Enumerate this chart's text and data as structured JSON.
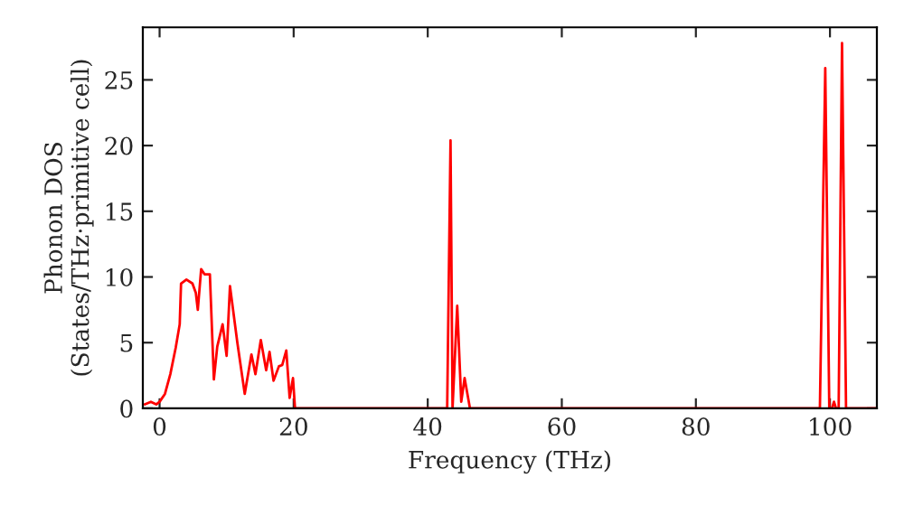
{
  "chart_data": {
    "type": "line",
    "xlabel": "Frequency (THz)",
    "ylabel": "Phonon DOS\n(States/THz·primitive cell)",
    "xlim": [
      -2.5,
      107
    ],
    "ylim": [
      0,
      29
    ],
    "xticks": [
      0,
      20,
      40,
      60,
      80,
      100
    ],
    "yticks": [
      0,
      5,
      10,
      15,
      20,
      25
    ],
    "marker": "none",
    "line_style": "solid",
    "x": [
      -2.2,
      -1.3,
      -0.5,
      0,
      0.8,
      1.6,
      2.4,
      3.0,
      3.2,
      4.0,
      4.9,
      5.4,
      5.7,
      6.2,
      6.7,
      7.5,
      8.1,
      8.6,
      9.4,
      10,
      10.5,
      11.6,
      12.7,
      13.7,
      14.3,
      15.1,
      15.9,
      16.4,
      17,
      17.8,
      18.3,
      18.9,
      19.4,
      19.9,
      20.2,
      42.9,
      43.4,
      43.7,
      44.4,
      45.0,
      45.5,
      46.3,
      98.5,
      99.3,
      99.9,
      100.3,
      100.6,
      100.9,
      101.3,
      101.8,
      102.4,
      107
    ],
    "series": [
      {
        "color": "#ff0000",
        "values": [
          0.3,
          0.5,
          0.3,
          0.5,
          1.1,
          2.6,
          4.6,
          6.4,
          9.5,
          9.8,
          9.5,
          8.8,
          7.5,
          10.6,
          10.2,
          10.2,
          2.2,
          4.7,
          6.4,
          4,
          9.3,
          5,
          1.1,
          4.1,
          2.6,
          5.2,
          2.9,
          4.3,
          2.1,
          3.2,
          3.3,
          4.4,
          0.8,
          2.3,
          0,
          0,
          20.4,
          0,
          7.8,
          0.5,
          2.3,
          0,
          0,
          25.9,
          0,
          0,
          0.5,
          0,
          0,
          27.8,
          0,
          0
        ]
      }
    ]
  }
}
